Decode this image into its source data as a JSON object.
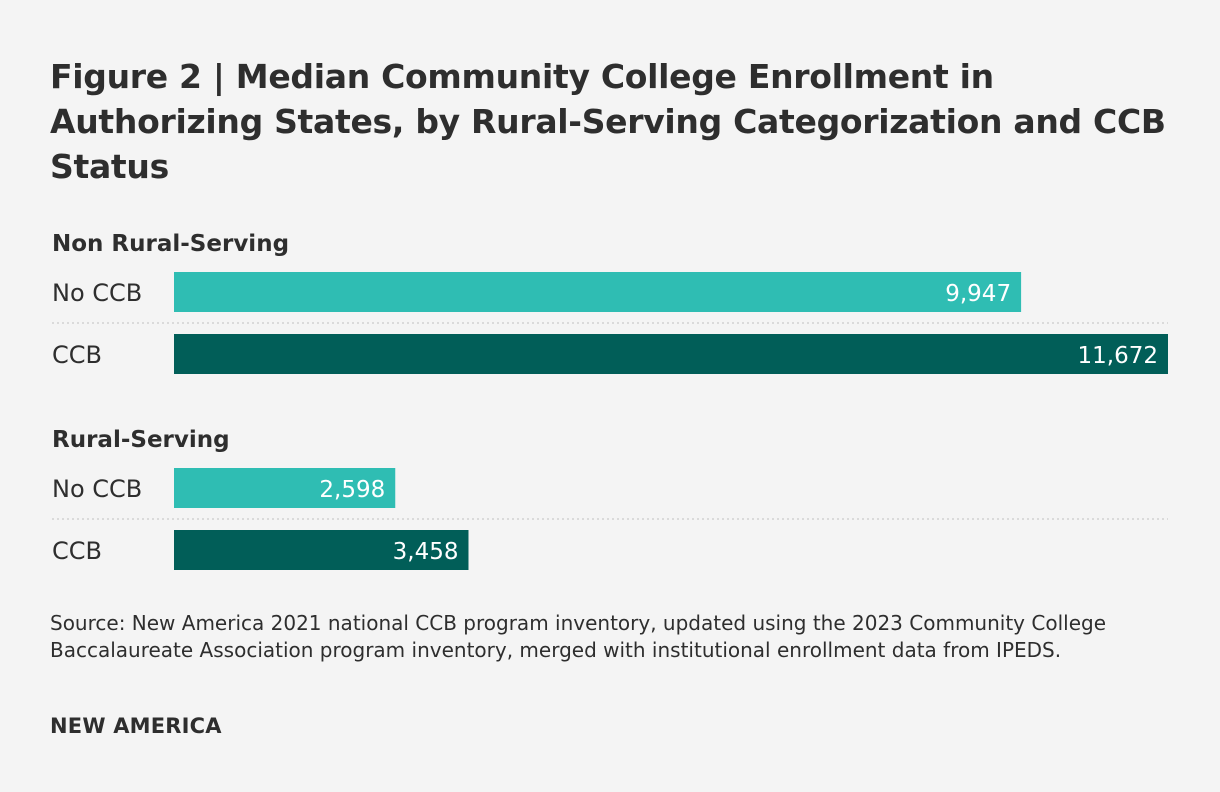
{
  "chart_data": {
    "type": "bar",
    "title": "Figure 2 | Median Community College Enrollment in Authorizing States, by Rural-Serving Categorization and CCB Status",
    "categories": [
      "No CCB",
      "CCB"
    ],
    "groups": [
      {
        "name": "Non Rural-Serving",
        "bars": [
          {
            "category": "No CCB",
            "value": 9947,
            "label": "9,947"
          },
          {
            "category": "CCB",
            "value": 11672,
            "label": "11,672"
          }
        ]
      },
      {
        "name": "Rural-Serving",
        "bars": [
          {
            "category": "No CCB",
            "value": 2598,
            "label": "2,598"
          },
          {
            "category": "CCB",
            "value": 3458,
            "label": "3,458"
          }
        ]
      }
    ],
    "xlim": [
      0,
      11672
    ],
    "orientation": "horizontal",
    "colors": {
      "No CCB": "#2fbdb3",
      "CCB": "#015e58"
    },
    "grid": false,
    "source": "Source: New America 2021 national CCB program inventory, updated using the 2023 Community College Baccalaureate Association program inventory, merged with institutional enrollment data from IPEDS."
  },
  "brand": "NEW AMERICA"
}
